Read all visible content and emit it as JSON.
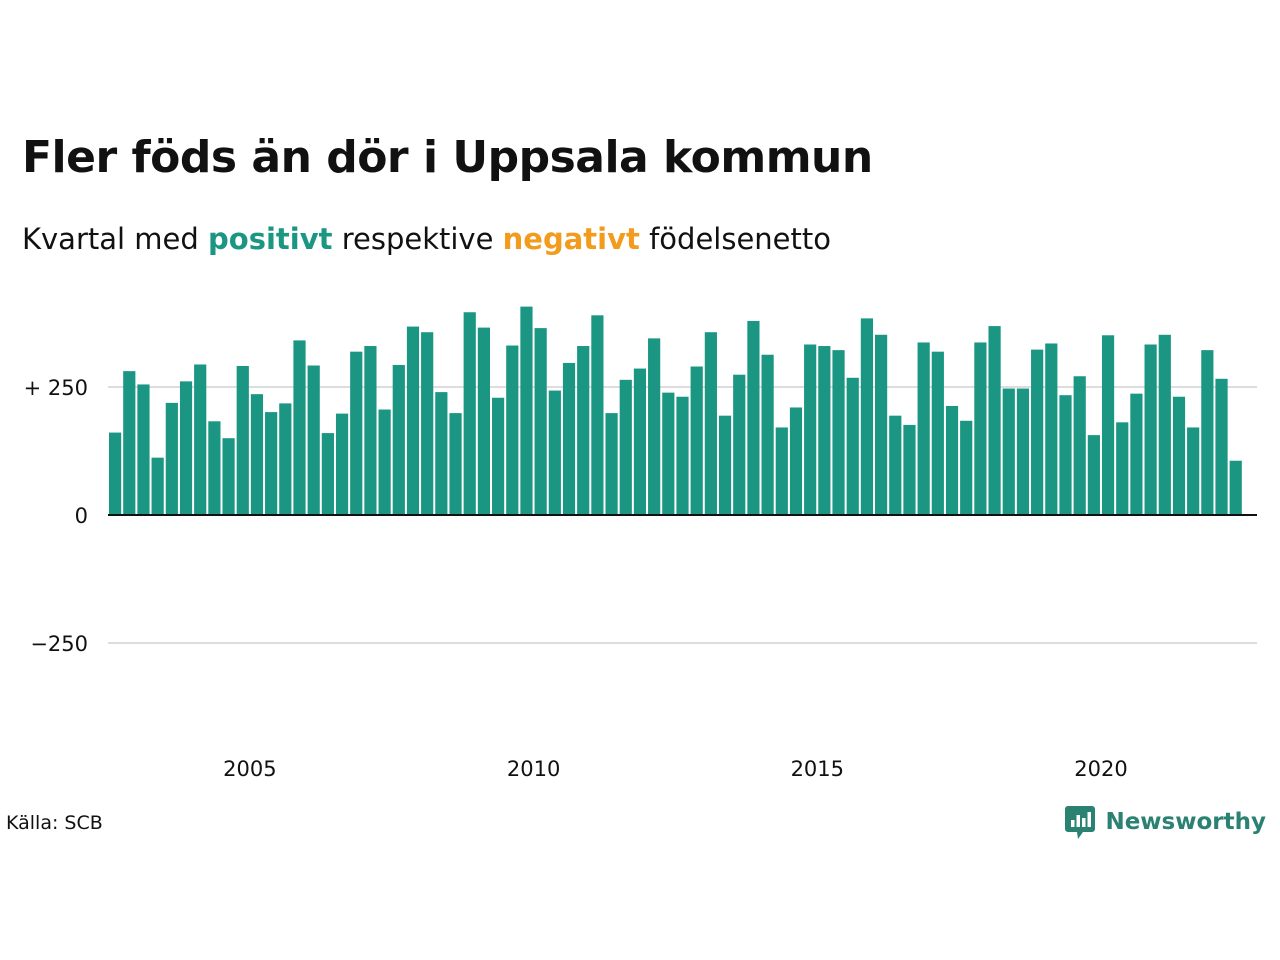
{
  "header": {
    "title": "Fler föds än dör i Uppsala kommun",
    "subtitle_prefix": "Kvartal med",
    "subtitle_positive": "positivt",
    "subtitle_middle": "respektive",
    "subtitle_negative": "negativt",
    "subtitle_suffix": "födelsenetto"
  },
  "colors": {
    "positive": "#1a9683",
    "negative": "#f29b1c",
    "gridline": "#dddddd",
    "text": "#111111"
  },
  "footer": {
    "source": "Källa: SCB",
    "brand": "Newsworthy",
    "brand_icon": "bar-chart-speech-bubble-icon"
  },
  "chart_data": {
    "type": "bar",
    "title": "Fler föds än dör i Uppsala kommun",
    "subtitle": "Kvartal med positivt respektive negativt födelsenetto",
    "xlabel": "",
    "ylabel": "",
    "ylim": [
      -400,
      450
    ],
    "yticks": [
      {
        "value": 250,
        "label": "+ 250"
      },
      {
        "value": 0,
        "label": "0"
      },
      {
        "value": -250,
        "label": "−250"
      }
    ],
    "xticks": [
      {
        "value": 2005,
        "label": "2005"
      },
      {
        "value": 2010,
        "label": "2010"
      },
      {
        "value": 2015,
        "label": "2015"
      },
      {
        "value": 2020,
        "label": "2020"
      }
    ],
    "grid": true,
    "legend": "none",
    "start_year": 2003,
    "start_quarter": 1,
    "categories": [
      "2003 K1",
      "2003 K2",
      "2003 K3",
      "2003 K4",
      "2004 K1",
      "2004 K2",
      "2004 K3",
      "2004 K4",
      "2005 K1",
      "2005 K2",
      "2005 K3",
      "2005 K4",
      "2006 K1",
      "2006 K2",
      "2006 K3",
      "2006 K4",
      "2007 K1",
      "2007 K2",
      "2007 K3",
      "2007 K4",
      "2008 K1",
      "2008 K2",
      "2008 K3",
      "2008 K4",
      "2009 K1",
      "2009 K2",
      "2009 K3",
      "2009 K4",
      "2010 K1",
      "2010 K2",
      "2010 K3",
      "2010 K4",
      "2011 K1",
      "2011 K2",
      "2011 K3",
      "2011 K4",
      "2012 K1",
      "2012 K2",
      "2012 K3",
      "2012 K4",
      "2013 K1",
      "2013 K2",
      "2013 K3",
      "2013 K4",
      "2014 K1",
      "2014 K2",
      "2014 K3",
      "2014 K4",
      "2015 K1",
      "2015 K2",
      "2015 K3",
      "2015 K4",
      "2016 K1",
      "2016 K2",
      "2016 K3",
      "2016 K4",
      "2017 K1",
      "2017 K2",
      "2017 K3",
      "2017 K4",
      "2018 K1",
      "2018 K2",
      "2018 K3",
      "2018 K4",
      "2019 K1",
      "2019 K2",
      "2019 K3",
      "2019 K4",
      "2020 K1",
      "2020 K2",
      "2020 K3",
      "2020 K4",
      "2021 K1",
      "2021 K2",
      "2021 K3",
      "2021 K4",
      "2022 K1",
      "2022 K2",
      "2022 K3",
      "2022 K4",
      "2023 K1"
    ],
    "values": [
      161,
      281,
      255,
      112,
      219,
      261,
      294,
      183,
      150,
      291,
      236,
      201,
      218,
      341,
      292,
      160,
      198,
      319,
      330,
      206,
      293,
      368,
      357,
      240,
      199,
      396,
      366,
      229,
      331,
      407,
      365,
      243,
      297,
      330,
      390,
      199,
      264,
      286,
      345,
      239,
      231,
      290,
      357,
      194,
      274,
      379,
      313,
      171,
      210,
      333,
      330,
      322,
      268,
      384,
      352,
      194,
      176,
      337,
      319,
      213,
      184,
      337,
      369,
      247,
      247,
      323,
      335,
      234,
      271,
      156,
      351,
      181,
      237,
      333,
      352,
      231,
      171,
      322,
      266,
      106,
      null
    ]
  }
}
